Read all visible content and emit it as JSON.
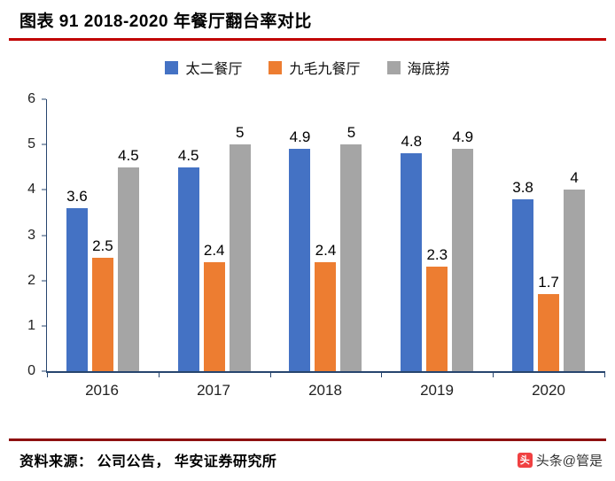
{
  "title": "图表 91 2018-2020 年餐厅翻台率对比",
  "source": "资料来源： 公司公告， 华安证券研究所",
  "watermark": {
    "text": "头条@管是",
    "icon_label": "头"
  },
  "colors": {
    "title_rule": "#c00000",
    "footer_rule": "#8e1010",
    "axis": "#27456e",
    "watermark_icon": "#f04142"
  },
  "chart_data": {
    "type": "bar",
    "title": "图表 91 2018-2020 年餐厅翻台率对比",
    "categories": [
      "2016",
      "2017",
      "2018",
      "2019",
      "2020"
    ],
    "series": [
      {
        "name": "太二餐厅",
        "color": "#4472c4",
        "values": [
          3.6,
          4.5,
          4.9,
          4.8,
          3.8
        ]
      },
      {
        "name": "九毛九餐厅",
        "color": "#ed7d31",
        "values": [
          2.5,
          2.4,
          2.4,
          2.3,
          1.7
        ]
      },
      {
        "name": "海底捞",
        "color": "#a5a5a5",
        "values": [
          4.5,
          5,
          5,
          4.9,
          4
        ]
      }
    ],
    "xlabel": "",
    "ylabel": "",
    "ylim": [
      0,
      6
    ],
    "ytick_step": 1,
    "grid": false,
    "legend_position": "top",
    "value_labels": true
  }
}
